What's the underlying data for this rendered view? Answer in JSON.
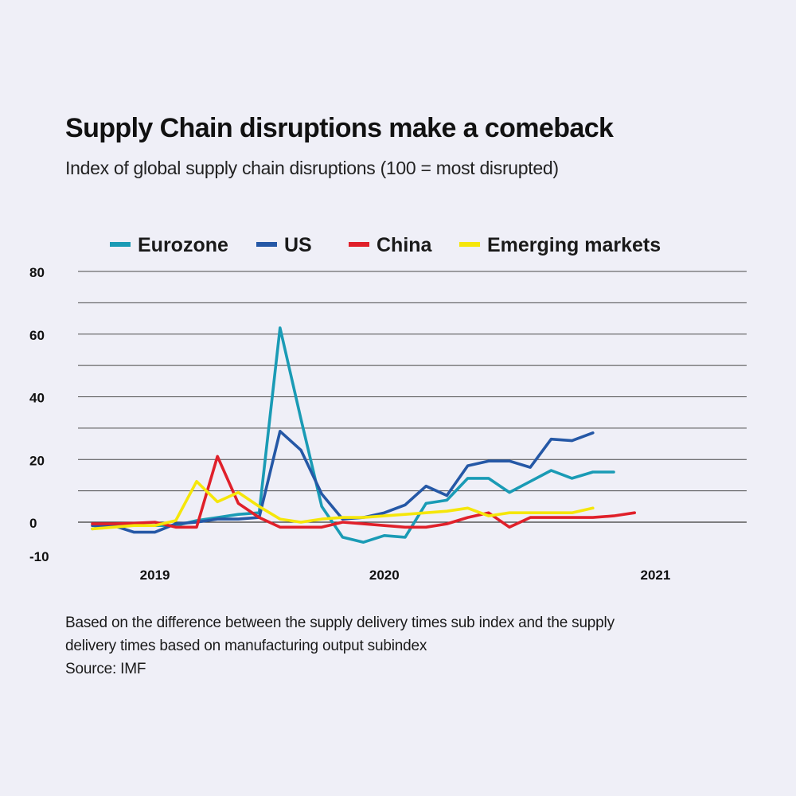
{
  "title": "Supply Chain disruptions make a comeback",
  "subtitle": "Index of global supply chain disruptions (100 = most disrupted)",
  "footnote": {
    "lines": [
      "Based on the difference between the supply delivery times sub index and the supply",
      "delivery times based on manufacturing output subindex"
    ],
    "source": "Source: IMF"
  },
  "chart_data": {
    "type": "line",
    "title": "Supply Chain disruptions make a comeback",
    "subtitle": "Index of global supply chain disruptions (100 = most disrupted)",
    "xlabel": "",
    "ylabel": "",
    "x": [
      "2018-11",
      "2018-12",
      "2019-01",
      "2019-02",
      "2019-03",
      "2019-04",
      "2019-05",
      "2019-06",
      "2019-07",
      "2019-08",
      "2019-09",
      "2019-10",
      "2019-11",
      "2019-12",
      "2020-01",
      "2020-02",
      "2020-03",
      "2020-04",
      "2020-05",
      "2020-06",
      "2020-07",
      "2020-08",
      "2020-09",
      "2020-10",
      "2020-11",
      "2020-12",
      "2021-01",
      "2021-02",
      "2021-03",
      "2021-04",
      "2021-05"
    ],
    "x_ticks": [
      {
        "label": "2019",
        "x": "2019-02"
      },
      {
        "label": "2020",
        "x": "2020-01"
      },
      {
        "label": "2021",
        "x": "2021-02"
      }
    ],
    "y_ticks": [
      {
        "label": "80",
        "value": 80
      },
      {
        "label": "60",
        "value": 60
      },
      {
        "label": "40",
        "value": 40
      },
      {
        "label": "20",
        "value": 20
      },
      {
        "label": "0",
        "value": 0
      },
      {
        "label": "-10",
        "value": -10
      }
    ],
    "gridlines": [
      80,
      70,
      60,
      50,
      40,
      30,
      20,
      10,
      0
    ],
    "ylim": [
      -10,
      80
    ],
    "grid": true,
    "legend_position": "top",
    "series": [
      {
        "name": "Eurozone",
        "color": "#1a9bb5",
        "values": [
          -2,
          -1,
          -1,
          -1,
          -1,
          0.5,
          1.5,
          2.5,
          3,
          62,
          33,
          5,
          -4.5,
          -6,
          -4,
          -4.5,
          6,
          7,
          14,
          14,
          9.5,
          13,
          16.5,
          14,
          16,
          16,
          null,
          null,
          null,
          null,
          null
        ]
      },
      {
        "name": "US",
        "color": "#2558a6",
        "values": [
          -1,
          -1,
          -3,
          -3,
          -0.5,
          0,
          1,
          1,
          1.5,
          29,
          23,
          9,
          1,
          1.5,
          3,
          5.5,
          11.5,
          8.5,
          18,
          19.5,
          19.5,
          17.5,
          26.5,
          26,
          28.5,
          null,
          null,
          null,
          null,
          null,
          null
        ]
      },
      {
        "name": "China",
        "color": "#e0202a",
        "values": [
          -0.5,
          -0.5,
          -0.3,
          0,
          -1.5,
          -1.5,
          21,
          6,
          1.5,
          -1.5,
          -1.5,
          -1.5,
          0,
          -0.5,
          -1,
          -1.5,
          -1.5,
          -0.5,
          1.5,
          3,
          -1.5,
          1.5,
          1.5,
          1.5,
          1.5,
          2,
          3,
          null,
          null,
          null,
          null
        ]
      },
      {
        "name": "Emerging markets",
        "color": "#f5e60a",
        "values": [
          -2,
          -1.5,
          -1,
          -1,
          0.5,
          13,
          6.5,
          9.5,
          5,
          1,
          0,
          1,
          1.5,
          1.5,
          2,
          2.5,
          3,
          3.5,
          4.5,
          2,
          3,
          3,
          3,
          3,
          4.5,
          null,
          null,
          null,
          null,
          null,
          null
        ]
      }
    ]
  }
}
